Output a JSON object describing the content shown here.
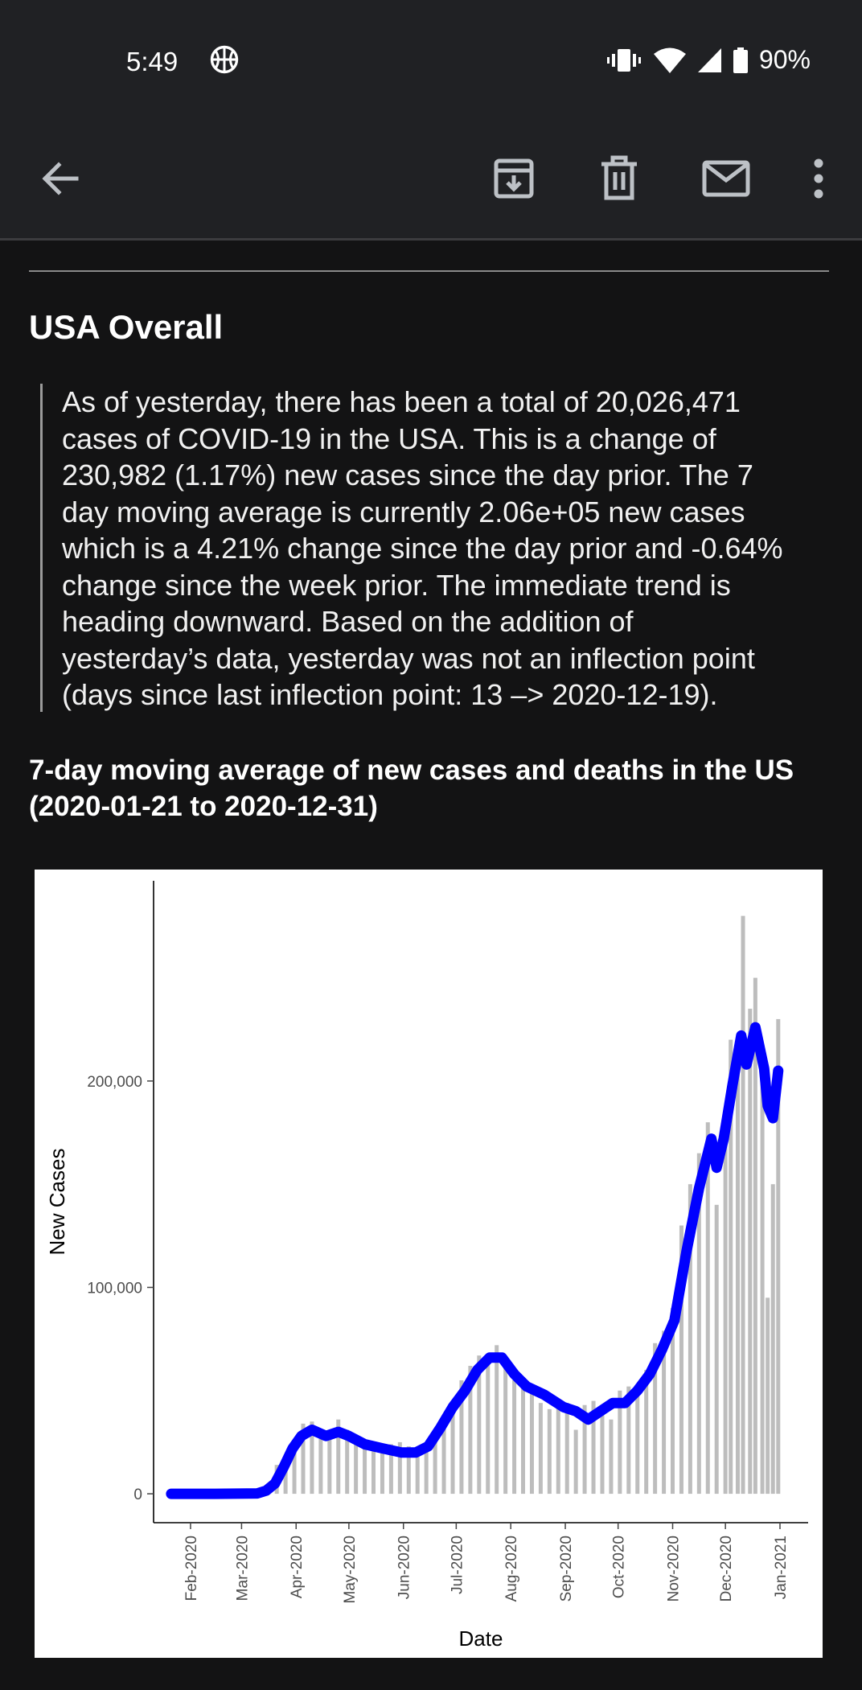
{
  "status_bar": {
    "time": "5:49",
    "battery": "90%",
    "icons": [
      "basketball-icon",
      "vibrate-icon",
      "wifi-icon",
      "signal-icon",
      "battery-icon"
    ]
  },
  "app_bar": {
    "icons": [
      "back-arrow-icon",
      "archive-icon",
      "delete-icon",
      "mail-icon",
      "more-vert-icon"
    ]
  },
  "email": {
    "section_title": "USA Overall",
    "summary_lines": [
      "As of yesterday, there has been a total of 20,026,471",
      "cases of COVID-19 in the USA. This is a change of",
      "230,982 (1.17%) new cases since the day prior. The 7",
      "day moving average is currently 2.06e+05 new cases",
      "which is a 4.21% change since the day prior and -0.64%",
      "change since the week prior. The immediate trend is",
      "heading downward. Based on the addition of",
      "yesterday’s data, yesterday was not an inflection point",
      "(days since last inflection point: 13 –> 2020-12-19)."
    ],
    "chart_heading_line1": "7-day moving average of new cases and deaths in the US",
    "chart_heading_line2": "(2020-01-21 to 2020-12-31)"
  },
  "colors": {
    "background": "#131314",
    "app_bar": "#202124",
    "moving_average_line": "#0000ff",
    "daily_bars": "#bdbdbd"
  },
  "chart_data": {
    "type": "bar",
    "title": "",
    "xlabel": "Date",
    "ylabel": "New Cases",
    "ylim": [
      -14000,
      297000
    ],
    "y_ticks": [
      0,
      100000,
      200000
    ],
    "y_tick_labels": [
      "0",
      "100,000",
      "200,000"
    ],
    "x_ticks": [
      "2020-02-01",
      "2020-03-01",
      "2020-04-01",
      "2020-05-01",
      "2020-06-01",
      "2020-07-01",
      "2020-08-01",
      "2020-09-01",
      "2020-10-01",
      "2020-11-01",
      "2020-12-01",
      "2021-01-01"
    ],
    "x_tick_labels": [
      "Feb-2020",
      "Mar-2020",
      "Apr-2020",
      "May-2020",
      "Jun-2020",
      "Jul-2020",
      "Aug-2020",
      "Sep-2020",
      "Oct-2020",
      "Nov-2020",
      "Dec-2020",
      "Jan-2021"
    ],
    "x_range": [
      "2020-01-21",
      "2020-12-31"
    ],
    "grid": false,
    "legend": "none",
    "series": [
      {
        "type": "bar",
        "granularity": "daily new cases",
        "x": [
          "2020-03-01",
          "2020-03-06",
          "2020-03-11",
          "2020-03-16",
          "2020-03-21",
          "2020-03-26",
          "2020-03-31",
          "2020-04-05",
          "2020-04-10",
          "2020-04-15",
          "2020-04-20",
          "2020-04-25",
          "2020-04-30",
          "2020-05-05",
          "2020-05-10",
          "2020-05-15",
          "2020-05-20",
          "2020-05-25",
          "2020-05-30",
          "2020-06-04",
          "2020-06-09",
          "2020-06-14",
          "2020-06-19",
          "2020-06-24",
          "2020-06-29",
          "2020-07-04",
          "2020-07-09",
          "2020-07-14",
          "2020-07-19",
          "2020-07-24",
          "2020-07-29",
          "2020-08-03",
          "2020-08-08",
          "2020-08-13",
          "2020-08-18",
          "2020-08-23",
          "2020-08-28",
          "2020-09-02",
          "2020-09-07",
          "2020-09-12",
          "2020-09-17",
          "2020-09-22",
          "2020-09-27",
          "2020-10-02",
          "2020-10-07",
          "2020-10-12",
          "2020-10-17",
          "2020-10-22",
          "2020-10-27",
          "2020-11-01",
          "2020-11-06",
          "2020-11-11",
          "2020-11-16",
          "2020-11-21",
          "2020-11-26",
          "2020-12-01",
          "2020-12-04",
          "2020-12-08",
          "2020-12-11",
          "2020-12-15",
          "2020-12-18",
          "2020-12-22",
          "2020-12-25",
          "2020-12-28",
          "2020-12-31"
        ],
        "values": [
          20,
          300,
          1300,
          4500,
          14000,
          19000,
          26000,
          34000,
          35000,
          30000,
          28000,
          36000,
          31000,
          26000,
          25000,
          24000,
          22000,
          24000,
          25000,
          23000,
          20000,
          22000,
          30000,
          38000,
          45000,
          55000,
          62000,
          67000,
          66000,
          72000,
          64000,
          55000,
          56000,
          52000,
          44000,
          41000,
          45000,
          44000,
          31000,
          43000,
          45000,
          40000,
          36000,
          50000,
          52000,
          49000,
          60000,
          73000,
          79000,
          90000,
          130000,
          150000,
          165000,
          180000,
          140000,
          180000,
          220000,
          215000,
          280000,
          235000,
          250000,
          210000,
          95000,
          150000,
          230000
        ]
      },
      {
        "type": "line",
        "granularity": "7-day moving average",
        "x": [
          "2020-01-21",
          "2020-02-15",
          "2020-03-10",
          "2020-03-15",
          "2020-03-20",
          "2020-03-25",
          "2020-03-30",
          "2020-04-04",
          "2020-04-10",
          "2020-04-18",
          "2020-04-25",
          "2020-05-01",
          "2020-05-10",
          "2020-05-20",
          "2020-05-31",
          "2020-06-08",
          "2020-06-15",
          "2020-06-22",
          "2020-06-29",
          "2020-07-06",
          "2020-07-13",
          "2020-07-20",
          "2020-07-27",
          "2020-08-03",
          "2020-08-10",
          "2020-08-20",
          "2020-08-31",
          "2020-09-07",
          "2020-09-14",
          "2020-09-21",
          "2020-09-28",
          "2020-10-05",
          "2020-10-12",
          "2020-10-19",
          "2020-10-26",
          "2020-11-02",
          "2020-11-09",
          "2020-11-16",
          "2020-11-23",
          "2020-11-26",
          "2020-11-30",
          "2020-12-05",
          "2020-12-10",
          "2020-12-13",
          "2020-12-18",
          "2020-12-23",
          "2020-12-25",
          "2020-12-28",
          "2020-12-31"
        ],
        "values": [
          0,
          0,
          200,
          1500,
          5000,
          13000,
          22000,
          28000,
          31000,
          28000,
          30000,
          28000,
          24000,
          22000,
          20000,
          20000,
          23000,
          32000,
          42000,
          50000,
          60000,
          66000,
          66000,
          58000,
          52000,
          48000,
          42000,
          40000,
          36000,
          40000,
          44000,
          44000,
          50000,
          58000,
          70000,
          84000,
          118000,
          148000,
          172000,
          158000,
          172000,
          198000,
          222000,
          208000,
          226000,
          206000,
          188000,
          182000,
          205000
        ]
      }
    ]
  }
}
